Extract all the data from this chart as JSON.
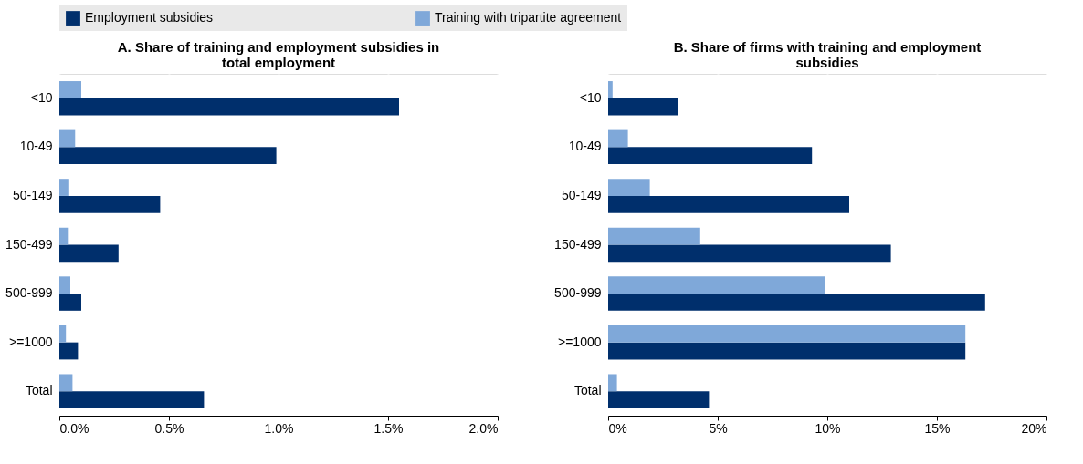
{
  "chart_data": [
    {
      "type": "bar",
      "orientation": "horizontal",
      "title": "A. Share of training and employment subsidies in total employment",
      "categories": [
        "<10",
        "10-49",
        "50-149",
        "150-499",
        "500-999",
        ">=1000",
        "Total"
      ],
      "series": [
        {
          "name": "Employment subsidies",
          "color": "#002f6c",
          "values": [
            1.55,
            0.99,
            0.46,
            0.27,
            0.1,
            0.085,
            0.66
          ]
        },
        {
          "name": "Training with tripartite agreement",
          "color": "#7fa8d9",
          "values": [
            0.1,
            0.072,
            0.045,
            0.043,
            0.05,
            0.03,
            0.06
          ]
        }
      ],
      "xlim": [
        0,
        2
      ],
      "xticks": [
        {
          "value": 0,
          "label": "0.0%"
        },
        {
          "value": 0.5,
          "label": "0.5%"
        },
        {
          "value": 1,
          "label": "1.0%"
        },
        {
          "value": 1.5,
          "label": "1.5%"
        },
        {
          "value": 2,
          "label": "2.0%"
        }
      ],
      "grid": true,
      "legend": "top"
    },
    {
      "type": "bar",
      "orientation": "horizontal",
      "title": "B. Share of firms with training and employment subsidies",
      "categories": [
        "<10",
        "10-49",
        "50-149",
        "150-499",
        "500-999",
        ">=1000",
        "Total"
      ],
      "series": [
        {
          "name": "Employment subsidies",
          "color": "#002f6c",
          "values": [
            3.2,
            9.3,
            11.0,
            12.9,
            17.2,
            16.3,
            4.6
          ]
        },
        {
          "name": "Training with tripartite agreement",
          "color": "#7fa8d9",
          "values": [
            0.2,
            0.9,
            1.9,
            4.2,
            9.9,
            16.3,
            0.4
          ]
        }
      ],
      "xlim": [
        0,
        20
      ],
      "xticks": [
        {
          "value": 0,
          "label": "0%"
        },
        {
          "value": 5,
          "label": "5%"
        },
        {
          "value": 10,
          "label": "10%"
        },
        {
          "value": 15,
          "label": "15%"
        },
        {
          "value": 20,
          "label": "20%"
        }
      ],
      "grid": true,
      "legend": "top"
    }
  ]
}
